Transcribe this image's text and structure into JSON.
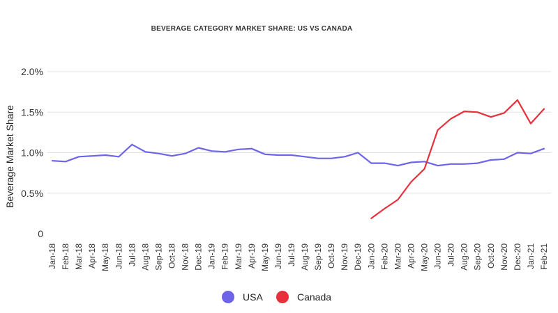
{
  "chart_data": {
    "type": "line",
    "title": "BEVERAGE CATEGORY MARKET SHARE: US VS CANADA",
    "xlabel": "",
    "ylabel": "Beverage Market Share",
    "ylim": [
      0,
      2.0
    ],
    "yticks": [
      {
        "value": 0,
        "label": "0"
      },
      {
        "value": 0.5,
        "label": "0.5%"
      },
      {
        "value": 1.0,
        "label": "1.0%"
      },
      {
        "value": 1.5,
        "label": "1.5%"
      },
      {
        "value": 2.0,
        "label": "2.0%"
      }
    ],
    "grid": true,
    "legend_position": "bottom",
    "categories": [
      "Jan-18",
      "Feb-18",
      "Mar-18",
      "Apr-18",
      "May-18",
      "Jun-18",
      "Jul-18",
      "Aug-18",
      "Sep-18",
      "Oct-18",
      "Nov-18",
      "Dec-18",
      "Jan-19",
      "Feb-19",
      "Mar-19",
      "Apr-19",
      "May-19",
      "Jun-19",
      "Jul-19",
      "Aug-19",
      "Sep-19",
      "Oct-19",
      "Nov-19",
      "Dec-19",
      "Jan-20",
      "Feb-20",
      "Mar-20",
      "Apr-20",
      "May-20",
      "Jun-20",
      "Jul-20",
      "Aug-20",
      "Sep-20",
      "Oct-20",
      "Nov-20",
      "Dec-20",
      "Jan-21",
      "Feb-21"
    ],
    "series": [
      {
        "name": "USA",
        "color": "#6d64e8",
        "values": [
          0.9,
          0.89,
          0.95,
          0.96,
          0.97,
          0.95,
          1.1,
          1.01,
          0.99,
          0.96,
          0.99,
          1.06,
          1.02,
          1.01,
          1.04,
          1.05,
          0.98,
          0.97,
          0.97,
          0.95,
          0.93,
          0.93,
          0.95,
          1.0,
          0.87,
          0.87,
          0.84,
          0.88,
          0.89,
          0.84,
          0.86,
          0.86,
          0.87,
          0.91,
          0.92,
          1.0,
          0.99,
          1.05
        ]
      },
      {
        "name": "Canada",
        "color": "#e8303c",
        "values": [
          null,
          null,
          null,
          null,
          null,
          null,
          null,
          null,
          null,
          null,
          null,
          null,
          null,
          null,
          null,
          null,
          null,
          null,
          null,
          null,
          null,
          null,
          null,
          null,
          0.19,
          0.31,
          0.42,
          0.64,
          0.8,
          1.28,
          1.42,
          1.51,
          1.5,
          1.44,
          1.49,
          1.65,
          1.36,
          1.54
        ]
      }
    ]
  }
}
